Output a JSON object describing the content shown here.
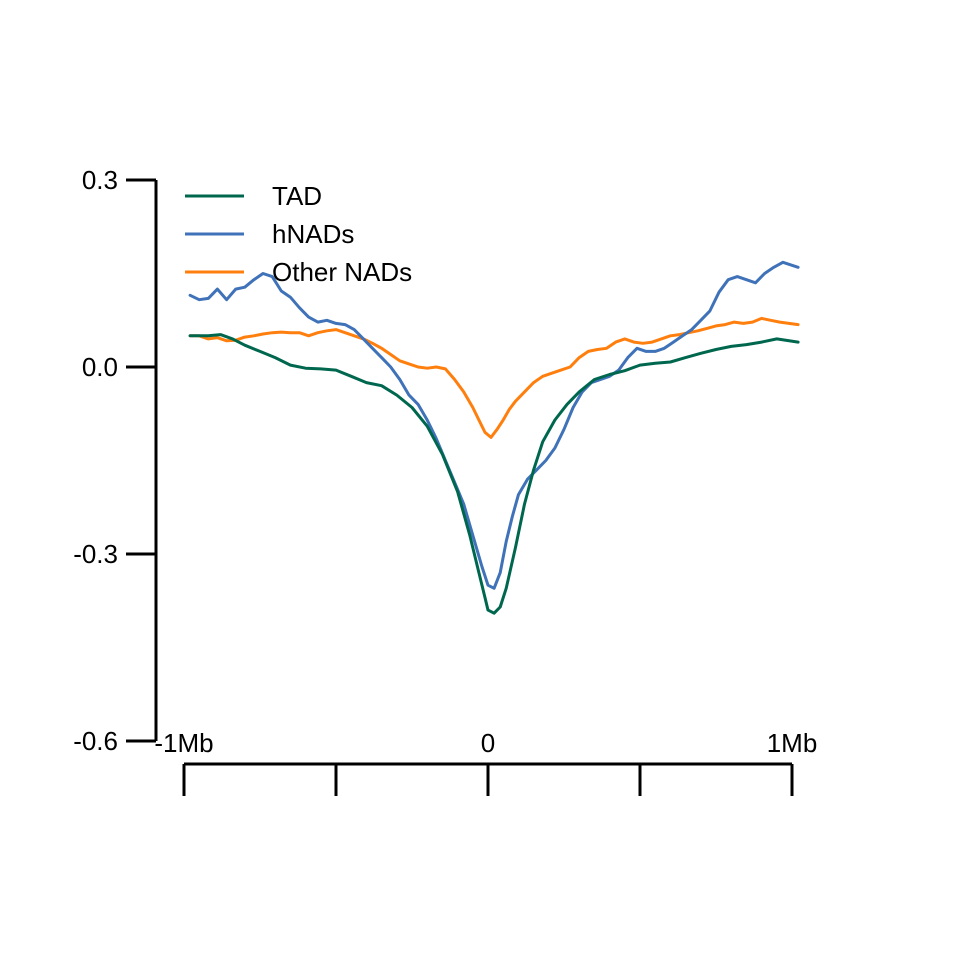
{
  "chart_data": {
    "type": "line",
    "x_ticks": [
      -1,
      -0.5,
      0,
      0.5,
      1
    ],
    "x_tick_labels": [
      "-1Mb",
      "",
      "0",
      "",
      "1Mb"
    ],
    "xlim": [
      -1,
      1
    ],
    "y_ticks": [
      0.3,
      0.0,
      -0.3,
      -0.6
    ],
    "y_tick_labels": [
      "0.3",
      "0.0",
      "-0.3",
      "-0.6"
    ],
    "ylim": [
      -0.6,
      0.3
    ],
    "legend": "top-left",
    "grid": false,
    "series": [
      {
        "name": "TAD",
        "color": "#00674f",
        "points": [
          [
            -0.98,
            0.05
          ],
          [
            -0.92,
            0.05
          ],
          [
            -0.88,
            0.052
          ],
          [
            -0.84,
            0.045
          ],
          [
            -0.8,
            0.035
          ],
          [
            -0.75,
            0.025
          ],
          [
            -0.7,
            0.015
          ],
          [
            -0.65,
            0.003
          ],
          [
            -0.6,
            -0.002
          ],
          [
            -0.55,
            -0.003
          ],
          [
            -0.5,
            -0.005
          ],
          [
            -0.45,
            -0.015
          ],
          [
            -0.4,
            -0.025
          ],
          [
            -0.35,
            -0.03
          ],
          [
            -0.3,
            -0.045
          ],
          [
            -0.25,
            -0.065
          ],
          [
            -0.2,
            -0.095
          ],
          [
            -0.15,
            -0.14
          ],
          [
            -0.1,
            -0.2
          ],
          [
            -0.06,
            -0.27
          ],
          [
            -0.03,
            -0.33
          ],
          [
            -0.01,
            -0.37
          ],
          [
            0.0,
            -0.39
          ],
          [
            0.02,
            -0.395
          ],
          [
            0.04,
            -0.385
          ],
          [
            0.06,
            -0.355
          ],
          [
            0.09,
            -0.29
          ],
          [
            0.12,
            -0.22
          ],
          [
            0.15,
            -0.165
          ],
          [
            0.18,
            -0.12
          ],
          [
            0.22,
            -0.085
          ],
          [
            0.26,
            -0.06
          ],
          [
            0.3,
            -0.04
          ],
          [
            0.35,
            -0.02
          ],
          [
            0.4,
            -0.012
          ],
          [
            0.45,
            -0.006
          ],
          [
            0.5,
            0.003
          ],
          [
            0.55,
            0.006
          ],
          [
            0.6,
            0.008
          ],
          [
            0.65,
            0.015
          ],
          [
            0.7,
            0.022
          ],
          [
            0.75,
            0.028
          ],
          [
            0.8,
            0.033
          ],
          [
            0.85,
            0.036
          ],
          [
            0.9,
            0.04
          ],
          [
            0.95,
            0.045
          ],
          [
            1.02,
            0.04
          ]
        ]
      },
      {
        "name": "hNADs",
        "color": "#3f72b8",
        "points": [
          [
            -0.98,
            0.115
          ],
          [
            -0.95,
            0.108
          ],
          [
            -0.92,
            0.11
          ],
          [
            -0.89,
            0.125
          ],
          [
            -0.86,
            0.108
          ],
          [
            -0.83,
            0.125
          ],
          [
            -0.8,
            0.128
          ],
          [
            -0.77,
            0.14
          ],
          [
            -0.74,
            0.15
          ],
          [
            -0.71,
            0.145
          ],
          [
            -0.68,
            0.122
          ],
          [
            -0.65,
            0.112
          ],
          [
            -0.62,
            0.095
          ],
          [
            -0.59,
            0.08
          ],
          [
            -0.56,
            0.072
          ],
          [
            -0.53,
            0.075
          ],
          [
            -0.5,
            0.07
          ],
          [
            -0.47,
            0.068
          ],
          [
            -0.44,
            0.06
          ],
          [
            -0.41,
            0.045
          ],
          [
            -0.38,
            0.03
          ],
          [
            -0.35,
            0.015
          ],
          [
            -0.32,
            0.0
          ],
          [
            -0.29,
            -0.02
          ],
          [
            -0.26,
            -0.045
          ],
          [
            -0.23,
            -0.06
          ],
          [
            -0.2,
            -0.085
          ],
          [
            -0.17,
            -0.115
          ],
          [
            -0.14,
            -0.15
          ],
          [
            -0.11,
            -0.185
          ],
          [
            -0.08,
            -0.22
          ],
          [
            -0.05,
            -0.27
          ],
          [
            -0.02,
            -0.32
          ],
          [
            0.0,
            -0.35
          ],
          [
            0.02,
            -0.355
          ],
          [
            0.04,
            -0.33
          ],
          [
            0.06,
            -0.28
          ],
          [
            0.08,
            -0.24
          ],
          [
            0.1,
            -0.205
          ],
          [
            0.13,
            -0.18
          ],
          [
            0.16,
            -0.165
          ],
          [
            0.19,
            -0.15
          ],
          [
            0.22,
            -0.13
          ],
          [
            0.25,
            -0.1
          ],
          [
            0.28,
            -0.065
          ],
          [
            0.31,
            -0.04
          ],
          [
            0.34,
            -0.025
          ],
          [
            0.37,
            -0.02
          ],
          [
            0.4,
            -0.015
          ],
          [
            0.43,
            -0.005
          ],
          [
            0.46,
            0.015
          ],
          [
            0.49,
            0.03
          ],
          [
            0.52,
            0.025
          ],
          [
            0.55,
            0.025
          ],
          [
            0.58,
            0.03
          ],
          [
            0.61,
            0.04
          ],
          [
            0.64,
            0.05
          ],
          [
            0.67,
            0.06
          ],
          [
            0.7,
            0.075
          ],
          [
            0.73,
            0.09
          ],
          [
            0.76,
            0.12
          ],
          [
            0.79,
            0.14
          ],
          [
            0.82,
            0.145
          ],
          [
            0.85,
            0.14
          ],
          [
            0.88,
            0.135
          ],
          [
            0.91,
            0.15
          ],
          [
            0.94,
            0.16
          ],
          [
            0.97,
            0.168
          ],
          [
            1.02,
            0.16
          ]
        ]
      },
      {
        "name": "Other NADs",
        "color": "#ff7f0e",
        "points": [
          [
            -0.98,
            0.05
          ],
          [
            -0.95,
            0.05
          ],
          [
            -0.92,
            0.045
          ],
          [
            -0.89,
            0.047
          ],
          [
            -0.86,
            0.042
          ],
          [
            -0.83,
            0.043
          ],
          [
            -0.8,
            0.048
          ],
          [
            -0.77,
            0.05
          ],
          [
            -0.74,
            0.053
          ],
          [
            -0.71,
            0.055
          ],
          [
            -0.68,
            0.056
          ],
          [
            -0.65,
            0.055
          ],
          [
            -0.62,
            0.055
          ],
          [
            -0.59,
            0.05
          ],
          [
            -0.56,
            0.055
          ],
          [
            -0.53,
            0.058
          ],
          [
            -0.5,
            0.06
          ],
          [
            -0.47,
            0.055
          ],
          [
            -0.44,
            0.05
          ],
          [
            -0.41,
            0.045
          ],
          [
            -0.38,
            0.038
          ],
          [
            -0.35,
            0.03
          ],
          [
            -0.32,
            0.02
          ],
          [
            -0.29,
            0.01
          ],
          [
            -0.26,
            0.005
          ],
          [
            -0.23,
            0.0
          ],
          [
            -0.2,
            -0.002
          ],
          [
            -0.17,
            0.0
          ],
          [
            -0.14,
            -0.003
          ],
          [
            -0.11,
            -0.02
          ],
          [
            -0.08,
            -0.04
          ],
          [
            -0.05,
            -0.065
          ],
          [
            -0.03,
            -0.085
          ],
          [
            -0.01,
            -0.105
          ],
          [
            0.01,
            -0.113
          ],
          [
            0.03,
            -0.1
          ],
          [
            0.05,
            -0.085
          ],
          [
            0.07,
            -0.068
          ],
          [
            0.09,
            -0.055
          ],
          [
            0.12,
            -0.04
          ],
          [
            0.15,
            -0.025
          ],
          [
            0.18,
            -0.015
          ],
          [
            0.21,
            -0.01
          ],
          [
            0.24,
            -0.005
          ],
          [
            0.27,
            0.0
          ],
          [
            0.3,
            0.015
          ],
          [
            0.33,
            0.025
          ],
          [
            0.36,
            0.028
          ],
          [
            0.39,
            0.03
          ],
          [
            0.42,
            0.04
          ],
          [
            0.45,
            0.045
          ],
          [
            0.48,
            0.04
          ],
          [
            0.51,
            0.038
          ],
          [
            0.54,
            0.04
          ],
          [
            0.57,
            0.045
          ],
          [
            0.6,
            0.05
          ],
          [
            0.63,
            0.052
          ],
          [
            0.66,
            0.055
          ],
          [
            0.69,
            0.058
          ],
          [
            0.72,
            0.062
          ],
          [
            0.75,
            0.066
          ],
          [
            0.78,
            0.068
          ],
          [
            0.81,
            0.072
          ],
          [
            0.84,
            0.07
          ],
          [
            0.87,
            0.072
          ],
          [
            0.9,
            0.078
          ],
          [
            0.93,
            0.075
          ],
          [
            0.96,
            0.072
          ],
          [
            1.02,
            0.068
          ]
        ]
      }
    ]
  }
}
